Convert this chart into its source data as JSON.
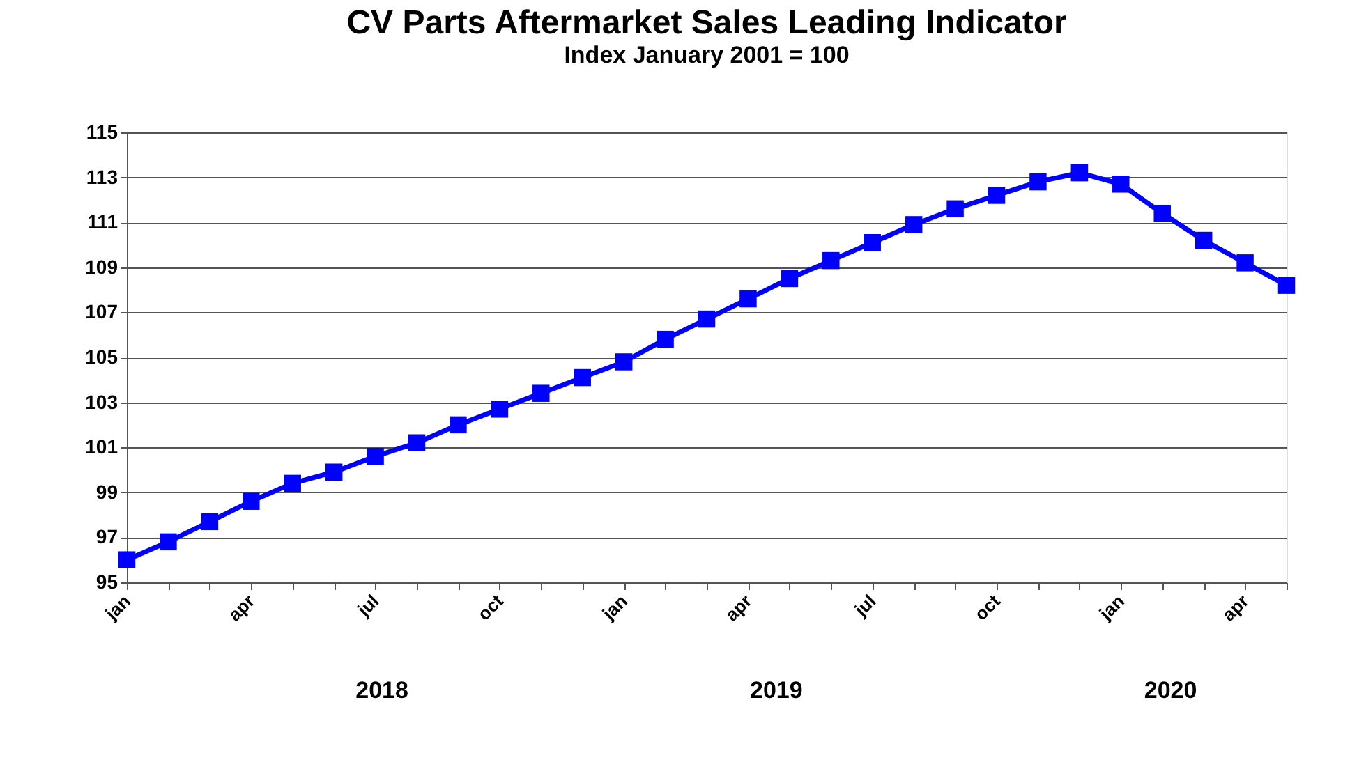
{
  "chart_data": {
    "type": "line",
    "title": "CV Parts Aftermarket Sales Leading Indicator",
    "subtitle": "Index January 2001 = 100",
    "categories": [
      "jan",
      null,
      null,
      "apr",
      null,
      null,
      "jul",
      null,
      null,
      "oct",
      null,
      null,
      "jan",
      null,
      null,
      "apr",
      null,
      null,
      "jul",
      null,
      null,
      "oct",
      null,
      null,
      "jan",
      null,
      null,
      "apr",
      null
    ],
    "series": [
      {
        "color": "#0000ff",
        "values": [
          96.0,
          96.8,
          97.7,
          98.6,
          99.4,
          99.9,
          100.6,
          101.2,
          102.0,
          102.7,
          103.4,
          104.1,
          104.8,
          105.8,
          106.7,
          107.6,
          108.5,
          109.3,
          110.1,
          110.9,
          111.6,
          112.2,
          112.8,
          113.2,
          112.7,
          111.4,
          110.2,
          109.2,
          108.2
        ]
      }
    ],
    "ylim": [
      95,
      115
    ],
    "yticks": [
      95,
      97,
      99,
      101,
      103,
      105,
      107,
      109,
      111,
      113,
      115
    ],
    "annotations": [
      "2018",
      "2019",
      "2020"
    ],
    "grid": "y",
    "marker": "square",
    "line_style": "solid"
  }
}
